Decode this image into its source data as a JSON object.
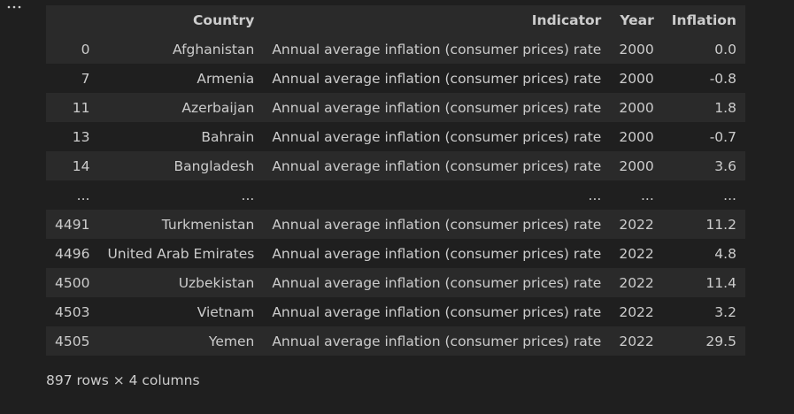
{
  "cell_menu": {
    "icon": "ellipsis-icon"
  },
  "table": {
    "columns": [
      "",
      "Country",
      "Indicator",
      "Year",
      "Inflation"
    ],
    "rows": [
      [
        "0",
        "Afghanistan",
        "Annual average inflation (consumer prices) rate",
        "2000",
        "0.0"
      ],
      [
        "7",
        "Armenia",
        "Annual average inflation (consumer prices) rate",
        "2000",
        "-0.8"
      ],
      [
        "11",
        "Azerbaijan",
        "Annual average inflation (consumer prices) rate",
        "2000",
        "1.8"
      ],
      [
        "13",
        "Bahrain",
        "Annual average inflation (consumer prices) rate",
        "2000",
        "-0.7"
      ],
      [
        "14",
        "Bangladesh",
        "Annual average inflation (consumer prices) rate",
        "2000",
        "3.6"
      ],
      [
        "...",
        "...",
        "...",
        "...",
        "..."
      ],
      [
        "4491",
        "Turkmenistan",
        "Annual average inflation (consumer prices) rate",
        "2022",
        "11.2"
      ],
      [
        "4496",
        "United Arab Emirates",
        "Annual average inflation (consumer prices) rate",
        "2022",
        "4.8"
      ],
      [
        "4500",
        "Uzbekistan",
        "Annual average inflation (consumer prices) rate",
        "2022",
        "11.4"
      ],
      [
        "4503",
        "Vietnam",
        "Annual average inflation (consumer prices) rate",
        "2022",
        "3.2"
      ],
      [
        "4505",
        "Yemen",
        "Annual average inflation (consumer prices) rate",
        "2022",
        "29.5"
      ]
    ]
  },
  "summary": "897 rows × 4 columns"
}
